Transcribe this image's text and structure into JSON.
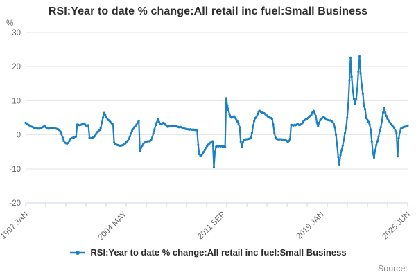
{
  "header": {
    "title": "RSI:Year to date % change:All retail inc fuel:Small Business"
  },
  "footer": {
    "source_label": "Source:"
  },
  "colors": {
    "line": "#1b80c4",
    "grid": "#e6e6e6",
    "axis": "#ccd6eb",
    "tick_text": "#666666",
    "title_text": "#2f2f2f",
    "legend_text": "#2b2b2b",
    "source_text": "#8f8f8f"
  },
  "chart_data": {
    "type": "line",
    "title": "RSI:Year to date % change:All retail inc fuel:Small Business",
    "unit_label": "%",
    "xlabel": "",
    "ylabel": "%",
    "ylim": [
      -20,
      30
    ],
    "y_ticks": [
      30,
      20,
      10,
      0,
      -10,
      -20
    ],
    "grid": "horizontal",
    "legend_position": "bottom",
    "x_start": "1997 JAN",
    "x_end": "2025 JUN",
    "x_frequency": "monthly",
    "x_tick_labels": [
      "1997 JAN",
      "2004 MAY",
      "2011 SEP",
      "2019 JAN",
      "2025 JUN"
    ],
    "x_tick_month_indices": [
      0,
      88,
      176,
      264,
      341
    ],
    "minor_tick_count": 20,
    "series": [
      {
        "name": "RSI:Year to date % change:All retail inc fuel:Small Business",
        "color": "#1b80c4",
        "values": [
          3.5,
          3.3,
          3.0,
          2.8,
          2.6,
          2.4,
          2.3,
          2.1,
          2.0,
          1.9,
          1.9,
          1.8,
          1.8,
          1.9,
          2.0,
          2.2,
          2.4,
          2.5,
          2.2,
          2.0,
          1.8,
          1.8,
          1.9,
          2.0,
          2.0,
          1.9,
          1.9,
          1.8,
          1.7,
          1.6,
          1.4,
          1.0,
          0.2,
          -0.8,
          -1.8,
          -2.3,
          -2.5,
          -2.6,
          -2.4,
          -1.8,
          -1.2,
          -1.0,
          -0.9,
          -0.8,
          -0.6,
          -0.5,
          3.0,
          2.9,
          2.8,
          2.9,
          3.0,
          3.2,
          3.3,
          3.0,
          2.7,
          2.7,
          2.8,
          -0.9,
          -1.0,
          -1.0,
          -0.8,
          -0.6,
          -0.3,
          0.3,
          0.8,
          1.0,
          1.4,
          2.0,
          3.5,
          5.0,
          6.4,
          5.8,
          5.2,
          4.7,
          4.3,
          4.0,
          3.6,
          3.3,
          3.0,
          -2.3,
          -2.7,
          -2.9,
          -3.0,
          -3.1,
          -3.2,
          -3.2,
          -3.1,
          -3.0,
          -2.8,
          -2.5,
          -2.1,
          -1.8,
          -1.2,
          -0.5,
          0.4,
          1.2,
          1.7,
          2.2,
          2.6,
          3.0,
          3.6,
          4.1,
          -4.7,
          -3.8,
          -3.2,
          -2.7,
          -2.3,
          -2.1,
          -2.0,
          -1.9,
          -1.9,
          -1.8,
          -1.6,
          -0.8,
          0.4,
          1.6,
          2.8,
          3.6,
          4.6,
          3.8,
          3.3,
          3.1,
          3.3,
          3.5,
          3.3,
          2.9,
          2.5,
          2.3,
          2.5,
          2.6,
          2.6,
          2.5,
          2.6,
          2.6,
          2.5,
          2.4,
          2.3,
          2.2,
          2.3,
          2.2,
          2.0,
          1.9,
          1.8,
          1.7,
          1.6,
          1.6,
          1.5,
          1.6,
          1.5,
          1.5,
          1.5,
          1.4,
          1.4,
          1.4,
          -3.0,
          -5.7,
          -6.1,
          -6.0,
          -5.5,
          -5.0,
          -4.4,
          -3.8,
          -3.3,
          -2.9,
          -2.6,
          -2.3,
          -2.1,
          -1.9,
          -9.5,
          -5.0,
          -3.5,
          -3.3,
          -3.4,
          -3.3,
          -3.4,
          -3.3,
          -3.5,
          -3.4,
          -3.6,
          10.7,
          8.5,
          7.2,
          6.0,
          5.3,
          5.0,
          5.2,
          5.4,
          5.0,
          4.4,
          3.9,
          3.2,
          2.2,
          -2.0,
          -3.6,
          -2.2,
          -1.5,
          -1.4,
          -1.3,
          -1.3,
          -1.2,
          -1.1,
          -1.0,
          0.5,
          2.5,
          4.0,
          4.9,
          5.3,
          6.0,
          6.8,
          7.0,
          6.7,
          6.5,
          6.4,
          6.3,
          6.0,
          5.7,
          5.4,
          5.2,
          5.0,
          4.9,
          4.6,
          3.0,
          0.5,
          -0.8,
          -1.2,
          -1.3,
          -1.4,
          -1.3,
          -1.3,
          -1.4,
          -1.4,
          -1.5,
          -1.5,
          -1.8,
          -2.2,
          -1.8,
          -1.2,
          2.9,
          2.8,
          2.7,
          2.9,
          2.8,
          3.0,
          3.1,
          2.9,
          2.9,
          3.1,
          3.4,
          3.9,
          4.3,
          4.5,
          4.6,
          4.9,
          5.2,
          5.5,
          5.8,
          6.5,
          7.0,
          6.2,
          5.5,
          3.5,
          2.5,
          3.5,
          4.3,
          4.6,
          5.0,
          5.3,
          4.9,
          4.6,
          4.4,
          4.3,
          4.2,
          4.2,
          4.0,
          3.8,
          3.2,
          2.2,
          0.0,
          -3.0,
          -6.5,
          -8.7,
          -6.0,
          -4.5,
          -3.2,
          -1.5,
          0.5,
          2.0,
          5.0,
          9.0,
          16.0,
          22.6,
          17.0,
          13.0,
          10.5,
          9.0,
          10.5,
          13.5,
          18.5,
          23.0,
          18.0,
          14.5,
          12.0,
          8.5,
          7.5,
          4.9,
          4.4,
          3.8,
          3.0,
          1.5,
          -2.0,
          -5.5,
          -6.7,
          -4.5,
          -3.0,
          -1.9,
          -0.5,
          1.0,
          2.2,
          4.0,
          6.5,
          7.8,
          6.5,
          5.5,
          4.7,
          4.2,
          3.6,
          3.2,
          2.8,
          2.4,
          2.0,
          1.2,
          0.5,
          -6.3,
          -1.0,
          0.8,
          1.8,
          2.0,
          2.2,
          2.3,
          2.4,
          2.5,
          2.7
        ]
      }
    ]
  }
}
